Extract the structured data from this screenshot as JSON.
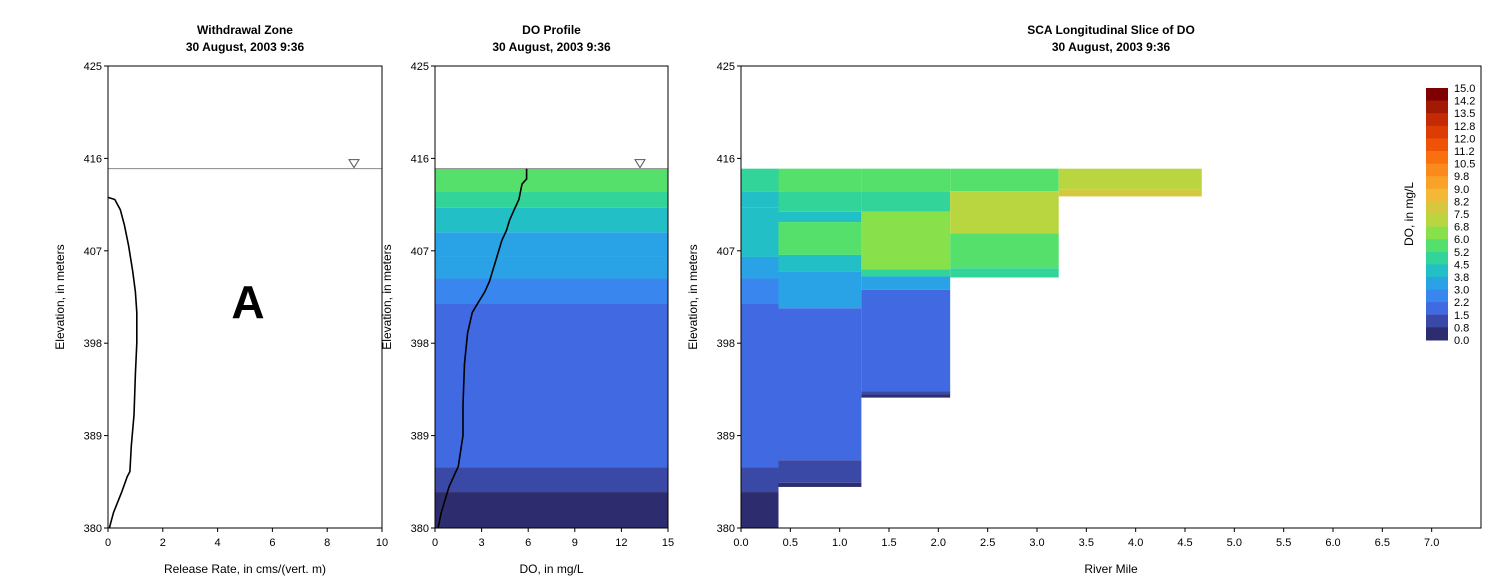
{
  "chart_data": [
    {
      "type": "line",
      "title": "Withdrawal Zone",
      "subtitle": "30 August, 2003  9:36",
      "xlabel": "Release Rate, in cms/(vert. m)",
      "ylabel": "Elevation, in meters",
      "xlim": [
        0,
        10
      ],
      "ylim": [
        380,
        425
      ],
      "xticks": [
        "0",
        "2",
        "4",
        "6",
        "8",
        "10"
      ],
      "yticks": [
        "380",
        "389",
        "398",
        "407",
        "416",
        "425"
      ],
      "grid": false,
      "water_surface_elevation": 415,
      "annotation": "A",
      "series": [
        {
          "x": [
            0.0,
            0.25,
            0.45,
            0.6,
            0.75,
            0.9,
            1.0,
            1.05,
            1.05,
            1.0,
            0.95,
            0.85,
            0.8,
            0.7,
            0.5,
            0.35,
            0.2,
            0.1,
            0.05
          ],
          "y": [
            412.2,
            412.0,
            411.0,
            409.5,
            407.5,
            405.0,
            403.0,
            401.0,
            398.0,
            395.0,
            391.0,
            388.0,
            385.5,
            385.0,
            383.5,
            382.5,
            381.5,
            380.5,
            380.0
          ]
        }
      ]
    },
    {
      "type": "line",
      "title": "DO Profile",
      "subtitle": "30 August, 2003  9:36",
      "xlabel": "DO, in mg/L",
      "ylabel": "Elevation, in meters",
      "xlim": [
        0,
        15
      ],
      "ylim": [
        380,
        425
      ],
      "xticks": [
        "0",
        "3",
        "6",
        "9",
        "12",
        "15"
      ],
      "yticks": [
        "380",
        "389",
        "398",
        "407",
        "416",
        "425"
      ],
      "grid": false,
      "water_surface_elevation": 415,
      "background_bands": [
        {
          "bottom": 412.8,
          "top": 415.0,
          "value": 5.4
        },
        {
          "bottom": 411.2,
          "top": 412.8,
          "value": 4.6
        },
        {
          "bottom": 408.8,
          "top": 411.2,
          "value": 4.0
        },
        {
          "bottom": 406.4,
          "top": 408.8,
          "value": 3.6
        },
        {
          "bottom": 404.3,
          "top": 406.4,
          "value": 3.0
        },
        {
          "bottom": 401.9,
          "top": 404.3,
          "value": 2.6
        },
        {
          "bottom": 385.9,
          "top": 401.9,
          "value": 1.8
        },
        {
          "bottom": 383.5,
          "top": 385.9,
          "value": 1.2
        },
        {
          "bottom": 380.0,
          "top": 383.5,
          "value": 0.3
        }
      ],
      "series": [
        {
          "x": [
            5.9,
            5.9,
            5.6,
            5.4,
            5.1,
            4.8,
            4.6,
            4.3,
            4.1,
            3.9,
            3.7,
            3.5,
            3.2,
            2.8,
            2.4,
            2.1,
            1.9,
            1.8,
            1.8,
            1.7,
            1.5,
            1.2,
            0.9,
            0.7,
            0.4,
            0.2
          ],
          "y": [
            415.0,
            414.0,
            413.5,
            412.0,
            411.0,
            410.0,
            409.0,
            408.0,
            407.0,
            406.0,
            405.0,
            404.0,
            403.0,
            402.0,
            401.0,
            399.0,
            396.0,
            392.0,
            389.0,
            388.0,
            386.0,
            385.0,
            384.0,
            383.0,
            381.5,
            380.0
          ]
        }
      ]
    },
    {
      "type": "heatmap",
      "title": "SCA Longitudinal Slice of DO",
      "subtitle": "30 August, 2003  9:36",
      "xlabel": "River Mile",
      "ylabel": "Elevation, in meters",
      "xlim": [
        0.0,
        7.5
      ],
      "ylim": [
        380,
        425
      ],
      "xticks": [
        "0.0",
        "0.5",
        "1.0",
        "1.5",
        "2.0",
        "2.5",
        "3.0",
        "3.5",
        "4.0",
        "4.5",
        "5.0",
        "5.5",
        "6.0",
        "6.5",
        "7.0"
      ],
      "yticks": [
        "380",
        "389",
        "398",
        "407",
        "416",
        "425"
      ],
      "grid": false,
      "colorbar_label": "DO, in mg/L",
      "colorbar_ticks": [
        "15.0",
        "14.2",
        "13.5",
        "12.8",
        "12.0",
        "11.2",
        "10.5",
        "9.8",
        "9.0",
        "8.2",
        "7.5",
        "6.8",
        "6.0",
        "5.2",
        "4.5",
        "3.8",
        "3.0",
        "2.2",
        "1.5",
        "0.8",
        "0.0"
      ],
      "colorbar_colors": [
        "#7f0000",
        "#a31a04",
        "#c42b04",
        "#dd3d05",
        "#ee5308",
        "#f8700f",
        "#fb8a1c",
        "#f9a22a",
        "#f2b836",
        "#d5c73e",
        "#b9d640",
        "#88e04a",
        "#55e06c",
        "#32d49a",
        "#23bfc6",
        "#2aa3e6",
        "#3a86ef",
        "#4169e1",
        "#3a48a6",
        "#2c2c6e",
        "#241b3a"
      ],
      "cells": [
        {
          "x0": 0.0,
          "x1": 0.38,
          "y0": 412.8,
          "y1": 415.0,
          "value": 4.5
        },
        {
          "x0": 0.0,
          "x1": 0.38,
          "y0": 411.2,
          "y1": 412.8,
          "value": 4.1
        },
        {
          "x0": 0.0,
          "x1": 0.38,
          "y0": 406.4,
          "y1": 411.2,
          "value": 3.8
        },
        {
          "x0": 0.0,
          "x1": 0.38,
          "y0": 404.3,
          "y1": 406.4,
          "value": 3.0
        },
        {
          "x0": 0.0,
          "x1": 0.38,
          "y0": 401.9,
          "y1": 404.3,
          "value": 2.6
        },
        {
          "x0": 0.0,
          "x1": 0.38,
          "y0": 385.9,
          "y1": 401.9,
          "value": 1.8
        },
        {
          "x0": 0.0,
          "x1": 0.38,
          "y0": 383.5,
          "y1": 385.9,
          "value": 1.2
        },
        {
          "x0": 0.0,
          "x1": 0.38,
          "y0": 380.0,
          "y1": 383.5,
          "value": 0.3
        },
        {
          "x0": 0.38,
          "x1": 1.22,
          "y0": 412.8,
          "y1": 415.0,
          "value": 5.7
        },
        {
          "x0": 0.38,
          "x1": 1.22,
          "y0": 410.8,
          "y1": 412.8,
          "value": 5.0
        },
        {
          "x0": 0.38,
          "x1": 1.22,
          "y0": 409.8,
          "y1": 410.8,
          "value": 4.4
        },
        {
          "x0": 0.38,
          "x1": 1.22,
          "y0": 406.6,
          "y1": 409.8,
          "value": 5.3
        },
        {
          "x0": 0.38,
          "x1": 1.22,
          "y0": 405.0,
          "y1": 406.6,
          "value": 4.0
        },
        {
          "x0": 0.38,
          "x1": 1.22,
          "y0": 401.4,
          "y1": 405.0,
          "value": 3.0
        },
        {
          "x0": 0.38,
          "x1": 1.22,
          "y0": 386.6,
          "y1": 401.4,
          "value": 1.8
        },
        {
          "x0": 0.38,
          "x1": 1.22,
          "y0": 384.4,
          "y1": 386.6,
          "value": 1.2
        },
        {
          "x0": 0.38,
          "x1": 1.22,
          "y0": 384.0,
          "y1": 384.4,
          "value": 0.3
        },
        {
          "x0": 1.22,
          "x1": 2.12,
          "y0": 412.8,
          "y1": 415.0,
          "value": 5.7
        },
        {
          "x0": 1.22,
          "x1": 2.12,
          "y0": 410.8,
          "y1": 412.8,
          "value": 5.0
        },
        {
          "x0": 1.22,
          "x1": 2.12,
          "y0": 405.2,
          "y1": 410.8,
          "value": 6.3
        },
        {
          "x0": 1.22,
          "x1": 2.12,
          "y0": 404.5,
          "y1": 405.2,
          "value": 4.8
        },
        {
          "x0": 1.22,
          "x1": 2.12,
          "y0": 403.2,
          "y1": 404.5,
          "value": 3.0
        },
        {
          "x0": 1.22,
          "x1": 2.12,
          "y0": 393.3,
          "y1": 403.2,
          "value": 1.8
        },
        {
          "x0": 1.22,
          "x1": 2.12,
          "y0": 393.0,
          "y1": 393.3,
          "value": 1.0
        },
        {
          "x0": 1.22,
          "x1": 2.12,
          "y0": 392.7,
          "y1": 393.0,
          "value": 0.3
        },
        {
          "x0": 2.12,
          "x1": 3.22,
          "y0": 412.8,
          "y1": 415.0,
          "value": 5.7
        },
        {
          "x0": 2.12,
          "x1": 3.22,
          "y0": 408.7,
          "y1": 412.8,
          "value": 7.0
        },
        {
          "x0": 2.12,
          "x1": 3.22,
          "y0": 405.3,
          "y1": 408.7,
          "value": 5.8
        },
        {
          "x0": 2.12,
          "x1": 3.22,
          "y0": 404.4,
          "y1": 405.3,
          "value": 4.5
        },
        {
          "x0": 3.22,
          "x1": 4.67,
          "y0": 413.0,
          "y1": 415.0,
          "value": 7.0
        },
        {
          "x0": 3.22,
          "x1": 4.67,
          "y0": 412.3,
          "y1": 413.0,
          "value": 8.2
        }
      ]
    }
  ]
}
